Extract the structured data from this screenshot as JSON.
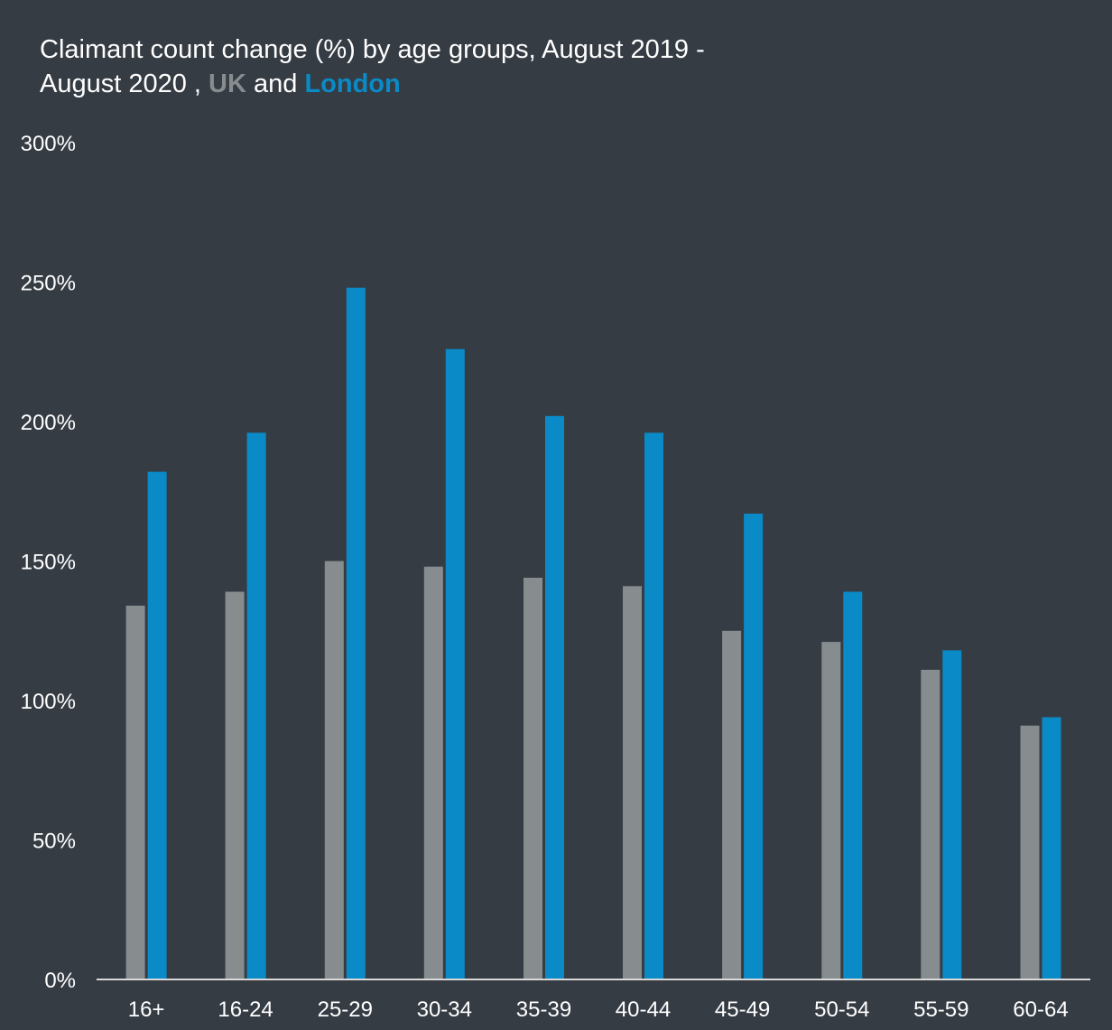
{
  "chart_data": {
    "type": "bar",
    "title": {
      "line1": "Claimant count change (%) by age groups, August 2019 -",
      "line2_prefix": "August 2020 ,",
      "uk": "UK",
      "connector": "and",
      "london": "London"
    },
    "categories": [
      "16+",
      "16-24",
      "25-29",
      "30-34",
      "35-39",
      "40-44",
      "45-49",
      "50-54",
      "55-59",
      "60-64"
    ],
    "series": [
      {
        "name": "UK",
        "color": "#878c8f",
        "values": [
          134,
          139,
          150,
          148,
          144,
          141,
          125,
          121,
          111,
          91
        ]
      },
      {
        "name": "London",
        "color": "#0a8ac6",
        "values": [
          182,
          196,
          248,
          226,
          202,
          196,
          167,
          139,
          118,
          94
        ]
      }
    ],
    "yticks": [
      "0%",
      "50%",
      "100%",
      "150%",
      "200%",
      "250%",
      "300%"
    ],
    "ylim": [
      0,
      300
    ],
    "xlabel": "",
    "ylabel": "",
    "grid": false,
    "colors": {
      "background": "#363c44",
      "axis": "#d9d9d9",
      "text": "#ffffff"
    }
  }
}
